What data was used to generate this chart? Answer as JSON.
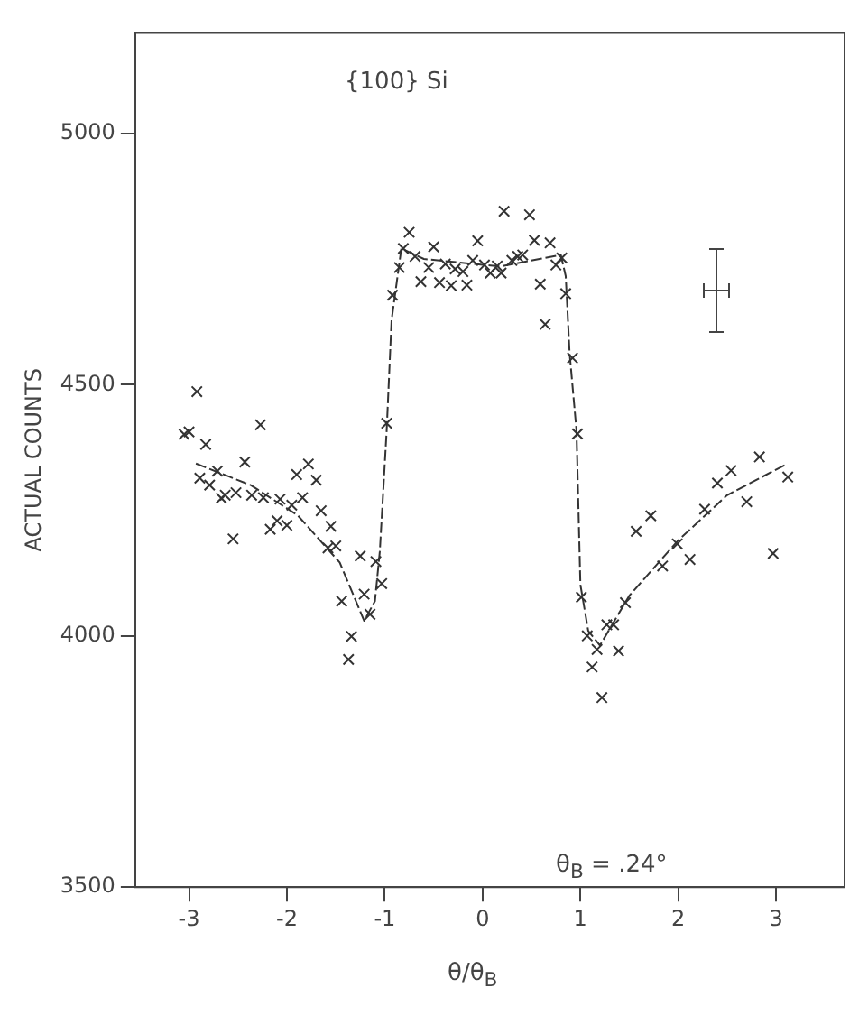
{
  "chart_data": {
    "type": "scatter",
    "xlabel": "θ/θ$_{B}$",
    "ylabel": "ACTUAL COUNTS",
    "annotations": [
      "{100} Si",
      "θ$_{B}$ = .24°"
    ],
    "xlim": [
      -3.55,
      3.7
    ],
    "ylim": [
      3500,
      5200
    ],
    "xticks": [
      -3,
      -2,
      -1,
      0,
      1,
      2,
      3
    ],
    "yticks": [
      3500,
      4000,
      4500,
      5000
    ],
    "grid": false,
    "legend": false,
    "series": [
      {
        "marker": "cross",
        "color": "#333333",
        "x": [
          -2.92,
          -3.05,
          -3.0,
          -2.83,
          -2.71,
          -2.89,
          -2.79,
          -2.67,
          -2.63,
          -2.52,
          -2.43,
          -2.55,
          -2.36,
          -2.27,
          -2.24,
          -2.17,
          -2.1,
          -2.0,
          -2.07,
          -1.95,
          -1.9,
          -1.78,
          -1.84,
          -1.7,
          -1.65,
          -1.55,
          -1.58,
          -1.5,
          -1.44,
          -1.34,
          -1.37,
          -1.25,
          -1.21,
          -1.15,
          -1.09,
          -1.03,
          -0.98,
          -0.92,
          -0.85,
          -0.81,
          -0.75,
          -0.69,
          -0.63,
          -0.55,
          -0.5,
          -0.44,
          -0.38,
          -0.32,
          -0.28,
          -0.2,
          -0.16,
          -0.1,
          -0.05,
          0.02,
          0.08,
          0.15,
          0.19,
          0.22,
          0.3,
          0.36,
          0.41,
          0.48,
          0.53,
          0.59,
          0.64,
          0.69,
          0.75,
          0.81,
          0.85,
          0.92,
          0.97,
          1.01,
          1.07,
          1.17,
          1.12,
          1.22,
          1.27,
          1.34,
          1.39,
          1.46,
          1.57,
          1.72,
          1.84,
          1.99,
          2.12,
          2.27,
          2.4,
          2.54,
          2.7,
          2.83,
          2.97,
          3.12
        ],
        "values": [
          4486,
          4401,
          4406,
          4381,
          4328,
          4314,
          4300,
          4274,
          4280,
          4285,
          4346,
          4193,
          4280,
          4420,
          4275,
          4212,
          4229,
          4220,
          4272,
          4260,
          4321,
          4342,
          4275,
          4310,
          4249,
          4218,
          4175,
          4179,
          4069,
          3999,
          3953,
          4159,
          4083,
          4043,
          4148,
          4104,
          4423,
          4678,
          4733,
          4771,
          4803,
          4755,
          4705,
          4733,
          4774,
          4703,
          4740,
          4697,
          4730,
          4725,
          4698,
          4747,
          4786,
          4738,
          4722,
          4736,
          4722,
          4845,
          4747,
          4755,
          4758,
          4838,
          4787,
          4700,
          4620,
          4782,
          4738,
          4752,
          4681,
          4553,
          4402,
          4077,
          4000,
          3973,
          3938,
          3877,
          4022,
          4022,
          3970,
          4066,
          4208,
          4239,
          4139,
          4183,
          4152,
          4252,
          4304,
          4329,
          4267,
          4356,
          4164,
          4316
        ]
      },
      {
        "type": "line",
        "marker": "none",
        "line_style": "dashed",
        "color": "#333333",
        "x": [
          -2.93,
          -2.37,
          -1.89,
          -1.46,
          -1.21,
          -1.1,
          -1.05,
          -0.98,
          -0.93,
          -0.83,
          -0.6,
          0.18,
          0.8,
          0.85,
          0.89,
          0.96,
          1.0,
          1.08,
          1.2,
          1.5,
          2.0,
          2.5,
          3.1
        ],
        "values": [
          4343,
          4300,
          4240,
          4146,
          4030,
          4069,
          4168,
          4409,
          4628,
          4771,
          4750,
          4735,
          4758,
          4716,
          4562,
          4409,
          4102,
          4010,
          3981,
          4080,
          4190,
          4280,
          4341
        ]
      }
    ]
  }
}
